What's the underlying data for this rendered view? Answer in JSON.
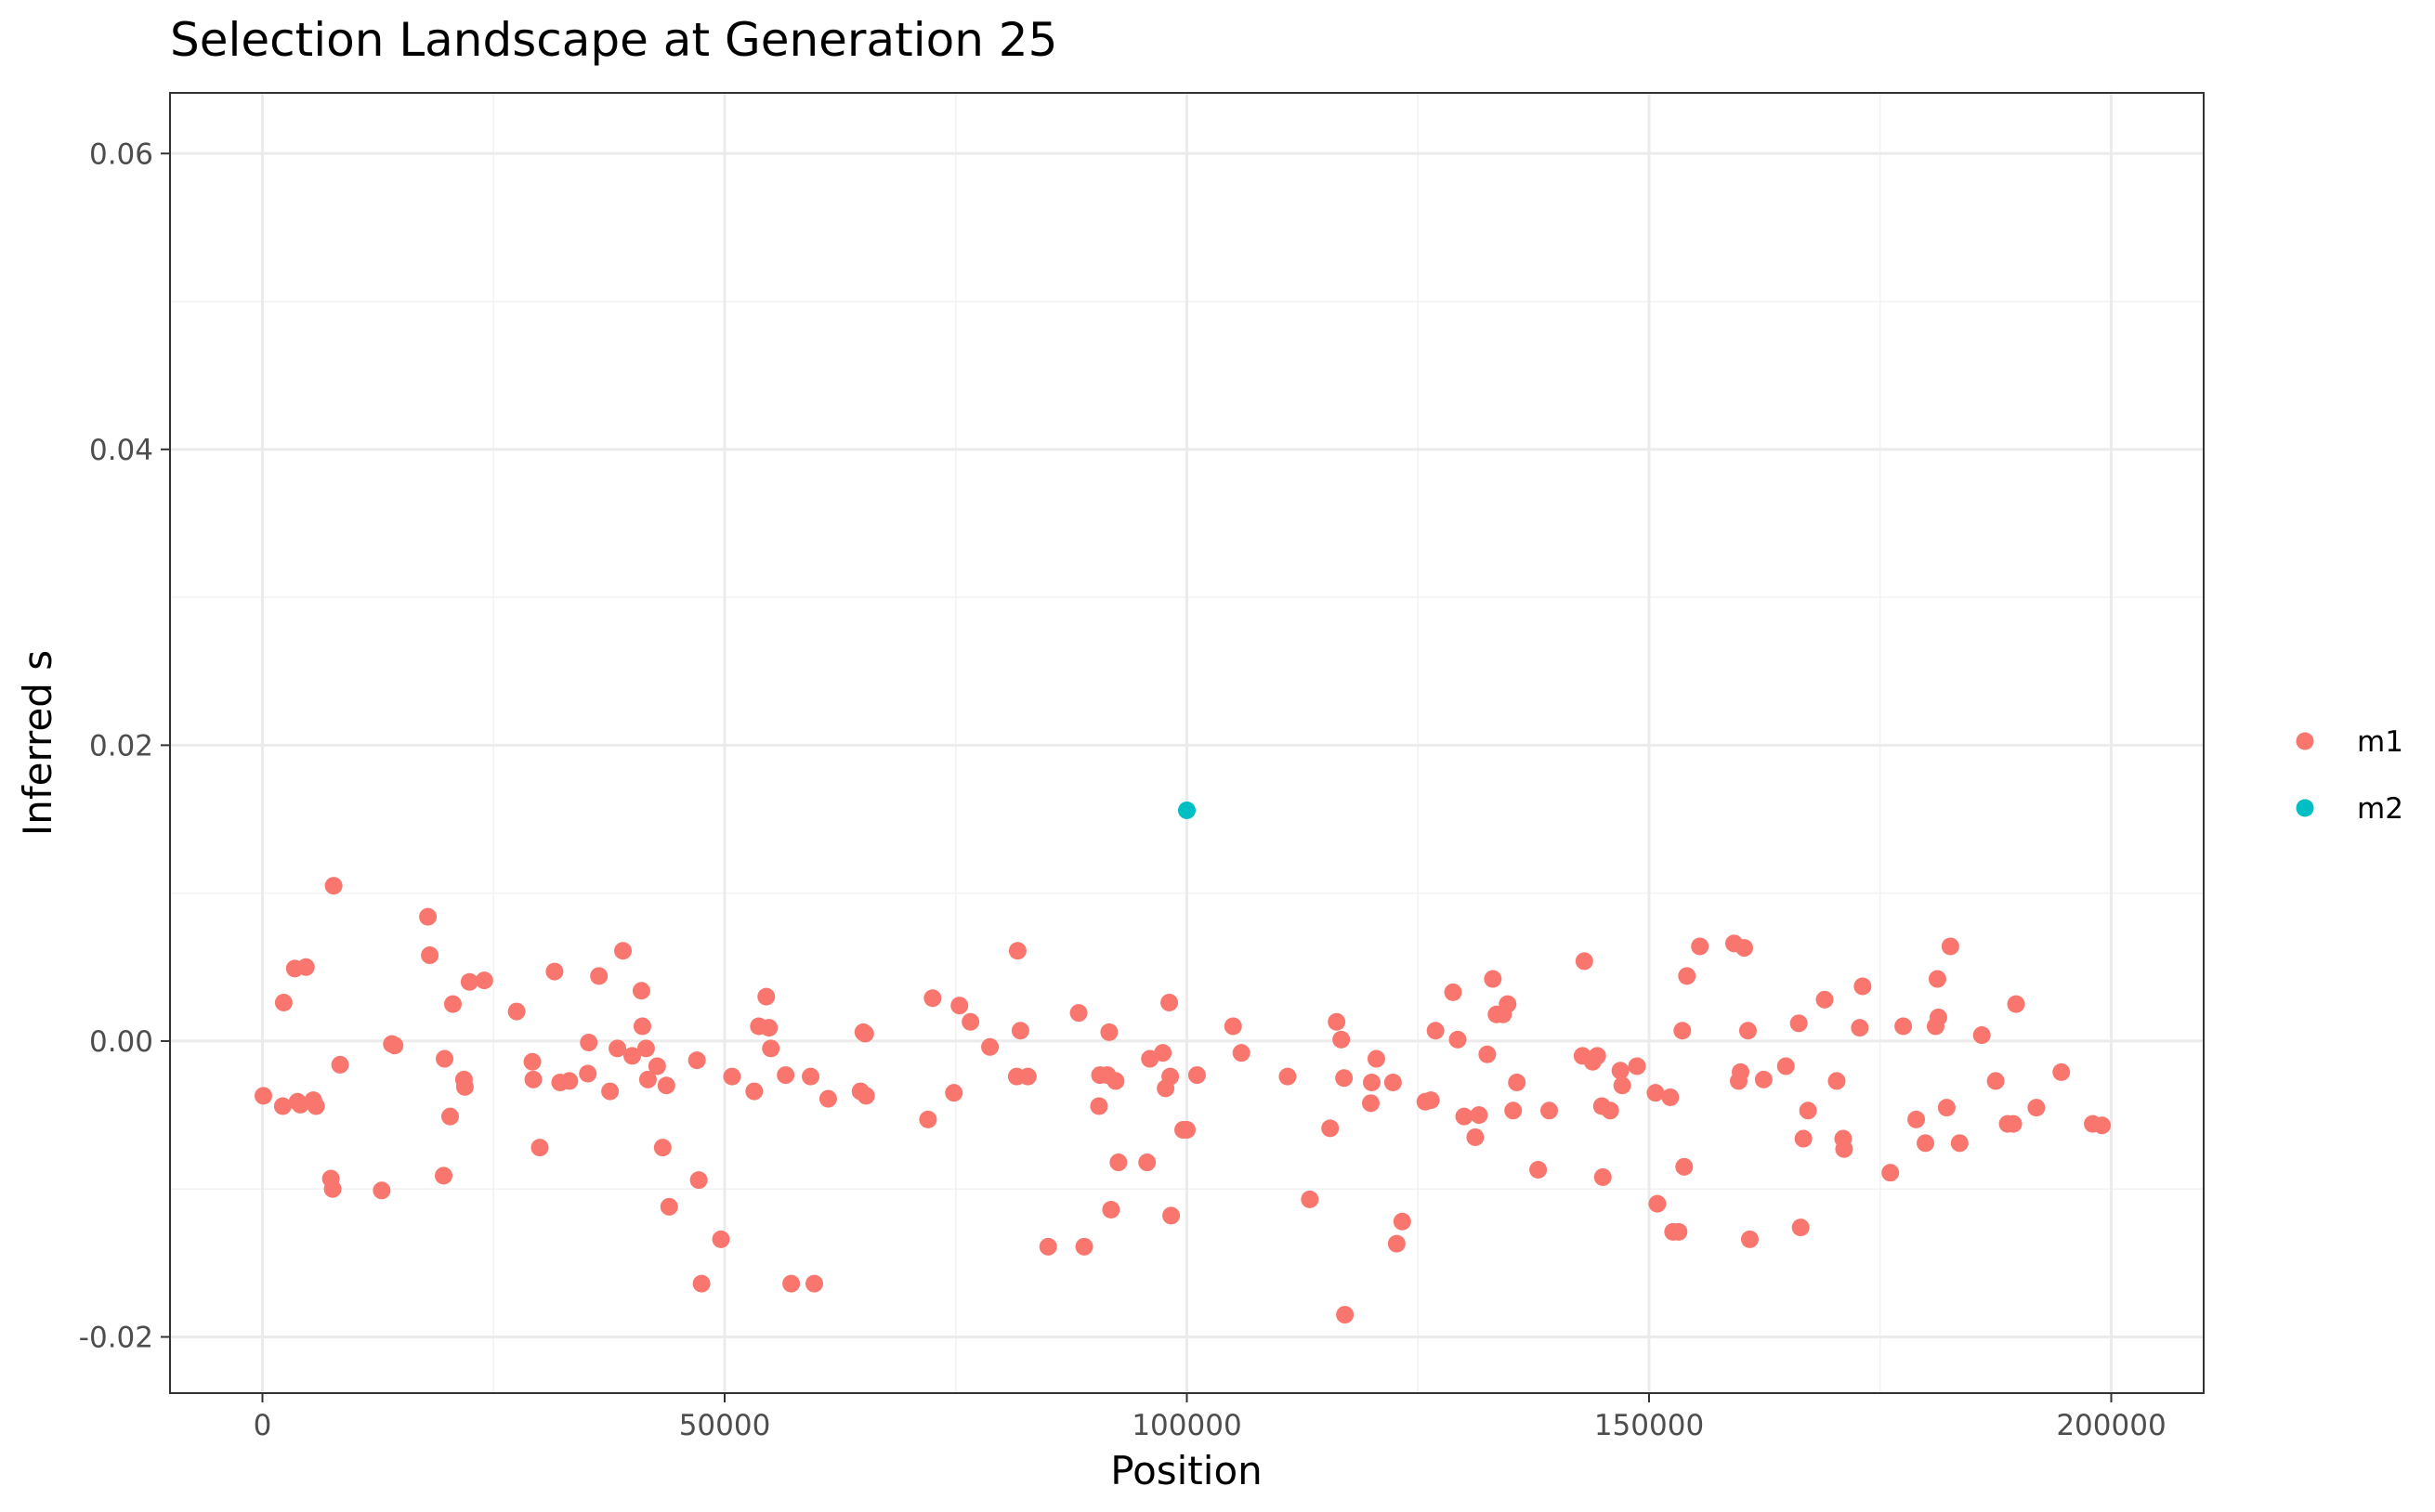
{
  "chart_data": {
    "type": "scatter",
    "title": "Selection Landscape at Generation 25",
    "xlabel": "Position",
    "ylabel": "Inferred s",
    "xlim": [
      -10000,
      210000
    ],
    "ylim": [
      -0.0238,
      0.0641
    ],
    "x_ticks": [
      0,
      50000,
      100000,
      150000,
      200000
    ],
    "x_tick_labels": [
      "0",
      "50000",
      "100000",
      "150000",
      "200000"
    ],
    "y_ticks": [
      -0.02,
      0,
      0.02,
      0.04,
      0.06
    ],
    "y_tick_labels": [
      "-0.02",
      "0.00",
      "0.02",
      "0.04",
      "0.06"
    ],
    "grid": true,
    "legend_position": "right",
    "series": [
      {
        "name": "m1",
        "color": "#F8766D",
        "points": [
          [
            100,
            -0.0037
          ],
          [
            2200,
            -0.0044
          ],
          [
            2300,
            0.0026
          ],
          [
            3500,
            0.0049
          ],
          [
            3800,
            -0.0041
          ],
          [
            4100,
            -0.0043
          ],
          [
            4700,
            0.005
          ],
          [
            5500,
            -0.004
          ],
          [
            5800,
            -0.0044
          ],
          [
            7400,
            -0.0093
          ],
          [
            7600,
            -0.01
          ],
          [
            7700,
            0.0105
          ],
          [
            8400,
            -0.0016
          ],
          [
            12900,
            -0.0101
          ],
          [
            14000,
            -0.0002
          ],
          [
            14300,
            -0.0003
          ],
          [
            17900,
            0.0084
          ],
          [
            18100,
            0.0058
          ],
          [
            19600,
            -0.0091
          ],
          [
            19700,
            -0.0012
          ],
          [
            20300,
            -0.0051
          ],
          [
            20600,
            0.0025
          ],
          [
            21800,
            -0.0026
          ],
          [
            21900,
            -0.0031
          ],
          [
            22400,
            0.004
          ],
          [
            24000,
            0.0041
          ],
          [
            27500,
            0.002
          ],
          [
            29200,
            -0.0014
          ],
          [
            29300,
            -0.0026
          ],
          [
            30000,
            -0.0072
          ],
          [
            31600,
            0.0047
          ],
          [
            32200,
            -0.0028
          ],
          [
            33200,
            -0.0027
          ],
          [
            35200,
            -0.0022
          ],
          [
            35300,
            -0.0001
          ],
          [
            36400,
            0.0044
          ],
          [
            37600,
            -0.0034
          ],
          [
            38400,
            -0.0005
          ],
          [
            39000,
            0.0061
          ],
          [
            40000,
            -0.001
          ],
          [
            41000,
            0.0034
          ],
          [
            41100,
            0.001
          ],
          [
            41500,
            -0.0005
          ],
          [
            41700,
            -0.0026
          ],
          [
            42700,
            -0.0017
          ],
          [
            43300,
            -0.0072
          ],
          [
            43700,
            -0.003
          ],
          [
            44000,
            -0.0112
          ],
          [
            47000,
            -0.0013
          ],
          [
            47200,
            -0.0094
          ],
          [
            47500,
            -0.0164
          ],
          [
            49600,
            -0.0134
          ],
          [
            50800,
            -0.0024
          ],
          [
            53200,
            -0.0034
          ],
          [
            53700,
            0.001
          ],
          [
            54500,
            0.003
          ],
          [
            54800,
            0.0009
          ],
          [
            55000,
            -0.0005
          ],
          [
            56600,
            -0.0023
          ],
          [
            57200,
            -0.0164
          ],
          [
            59300,
            -0.0024
          ],
          [
            59700,
            -0.0164
          ],
          [
            61200,
            -0.0039
          ],
          [
            64700,
            -0.0034
          ],
          [
            65000,
            0.0006
          ],
          [
            65200,
            0.0005
          ],
          [
            65300,
            -0.0037
          ],
          [
            72000,
            -0.0053
          ],
          [
            72500,
            0.0029
          ],
          [
            74800,
            -0.0035
          ],
          [
            75400,
            0.0024
          ],
          [
            76600,
            0.0013
          ],
          [
            78700,
            -0.0004
          ],
          [
            81600,
            -0.0024
          ],
          [
            81700,
            0.0061
          ],
          [
            82000,
            0.0007
          ],
          [
            82800,
            -0.0024
          ],
          [
            85000,
            -0.0139
          ],
          [
            88300,
            0.0019
          ],
          [
            88900,
            -0.0139
          ],
          [
            90500,
            -0.0044
          ],
          [
            90600,
            -0.0023
          ],
          [
            91400,
            -0.0023
          ],
          [
            91600,
            0.0006
          ],
          [
            91800,
            -0.0114
          ],
          [
            92300,
            -0.0027
          ],
          [
            92600,
            -0.0082
          ],
          [
            95700,
            -0.0082
          ],
          [
            96000,
            -0.0012
          ],
          [
            97400,
            -0.0008
          ],
          [
            97700,
            -0.0032
          ],
          [
            98100,
            0.0026
          ],
          [
            98200,
            -0.0024
          ],
          [
            98300,
            -0.0118
          ],
          [
            99600,
            -0.006
          ],
          [
            100000,
            -0.006
          ],
          [
            101100,
            -0.0023
          ],
          [
            105000,
            0.001
          ],
          [
            105900,
            -0.0008
          ],
          [
            110900,
            -0.0024
          ],
          [
            113300,
            -0.0107
          ],
          [
            115500,
            -0.0059
          ],
          [
            116200,
            0.0013
          ],
          [
            116700,
            0.0001
          ],
          [
            117000,
            -0.0025
          ],
          [
            117100,
            -0.0185
          ],
          [
            119900,
            -0.0042
          ],
          [
            120000,
            -0.0028
          ],
          [
            120500,
            -0.0012
          ],
          [
            122300,
            -0.0028
          ],
          [
            122700,
            -0.0137
          ],
          [
            123300,
            -0.0122
          ],
          [
            125800,
            -0.0041
          ],
          [
            126400,
            -0.004
          ],
          [
            126900,
            0.0007
          ],
          [
            128800,
            0.0033
          ],
          [
            129300,
            0.0001
          ],
          [
            130000,
            -0.0051
          ],
          [
            131200,
            -0.0065
          ],
          [
            131600,
            -0.005
          ],
          [
            132500,
            -0.0009
          ],
          [
            133100,
            0.0042
          ],
          [
            133500,
            0.0018
          ],
          [
            134200,
            0.0018
          ],
          [
            134700,
            0.0025
          ],
          [
            135300,
            -0.0047
          ],
          [
            135700,
            -0.0028
          ],
          [
            138000,
            -0.0087
          ],
          [
            139200,
            -0.0047
          ],
          [
            142800,
            -0.001
          ],
          [
            143000,
            0.0054
          ],
          [
            143900,
            -0.0014
          ],
          [
            144400,
            -0.001
          ],
          [
            144900,
            -0.0044
          ],
          [
            145000,
            -0.0092
          ],
          [
            145800,
            -0.0047
          ],
          [
            146900,
            -0.002
          ],
          [
            147100,
            -0.003
          ],
          [
            148700,
            -0.0017
          ],
          [
            150700,
            -0.0035
          ],
          [
            150900,
            -0.011
          ],
          [
            152300,
            -0.0038
          ],
          [
            152600,
            -0.0129
          ],
          [
            153200,
            -0.0129
          ],
          [
            153600,
            0.0007
          ],
          [
            153800,
            -0.0085
          ],
          [
            154100,
            0.0044
          ],
          [
            155500,
            0.0064
          ],
          [
            159200,
            0.0066
          ],
          [
            159700,
            -0.0027
          ],
          [
            159900,
            -0.0021
          ],
          [
            160300,
            0.0063
          ],
          [
            160700,
            0.0007
          ],
          [
            160900,
            -0.0134
          ],
          [
            162400,
            -0.0026
          ],
          [
            164800,
            -0.0017
          ],
          [
            166200,
            0.0012
          ],
          [
            166400,
            -0.0126
          ],
          [
            166700,
            -0.0066
          ],
          [
            167200,
            -0.0047
          ],
          [
            169000,
            0.0028
          ],
          [
            170300,
            -0.0027
          ],
          [
            171000,
            -0.0066
          ],
          [
            171100,
            -0.0073
          ],
          [
            172800,
            0.0009
          ],
          [
            173100,
            0.0037
          ],
          [
            176100,
            -0.0089
          ],
          [
            177500,
            0.001
          ],
          [
            178900,
            -0.0053
          ],
          [
            179900,
            -0.0069
          ],
          [
            181000,
            0.001
          ],
          [
            181200,
            0.0042
          ],
          [
            181300,
            0.0016
          ],
          [
            182200,
            -0.0045
          ],
          [
            182600,
            0.0064
          ],
          [
            183600,
            -0.0069
          ],
          [
            186000,
            0.0004
          ],
          [
            187500,
            -0.0027
          ],
          [
            188800,
            -0.0056
          ],
          [
            189400,
            -0.0056
          ],
          [
            189700,
            0.0025
          ],
          [
            191900,
            -0.0045
          ],
          [
            194600,
            -0.0021
          ],
          [
            198000,
            -0.0056
          ],
          [
            199000,
            -0.0057
          ]
        ]
      },
      {
        "name": "m2",
        "color": "#00BFC4",
        "points": [
          [
            100000,
            0.0156
          ]
        ]
      }
    ]
  }
}
